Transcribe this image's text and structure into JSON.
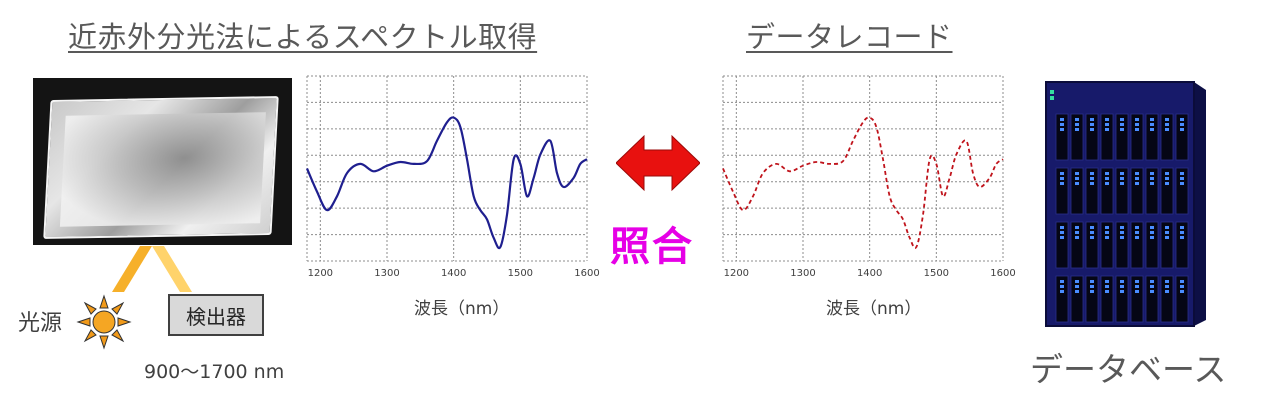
{
  "titles": {
    "acquisition": "近赤外分光法によるスペクトル取得",
    "record": "データレコード"
  },
  "labels": {
    "light_source": "光源",
    "detector": "検出器",
    "wavelength_range": "900～1700 nm",
    "matching": "照合",
    "database": "データベース"
  },
  "colors": {
    "measured_line": "#1f1f8f",
    "record_line": "#c0141c",
    "arrow": "#e8110f",
    "match_text": "#e600e6",
    "light_beam": "#f6b02a",
    "server_body": "#171a6a"
  },
  "chart_data": [
    {
      "type": "line",
      "title": "",
      "xlabel": "波長（nm）",
      "ylabel": "",
      "x_ticks": [
        "1200",
        "1300",
        "1400",
        "1500",
        "1600"
      ],
      "xlim": [
        1180,
        1600
      ],
      "ylim": [
        -1,
        1
      ],
      "grid": true,
      "line_style": "solid",
      "series": [
        {
          "x": [
            1180,
            1195,
            1210,
            1225,
            1240,
            1260,
            1280,
            1300,
            1320,
            1340,
            1360,
            1375,
            1390,
            1400,
            1410,
            1420,
            1430,
            1440,
            1450,
            1460,
            1470,
            1480,
            1490,
            1500,
            1510,
            1520,
            1530,
            1545,
            1555,
            1565,
            1580,
            1590,
            1600
          ],
          "y": [
            0.0,
            -0.25,
            -0.45,
            -0.3,
            -0.05,
            0.05,
            -0.03,
            0.03,
            0.07,
            0.05,
            0.08,
            0.3,
            0.5,
            0.55,
            0.45,
            0.1,
            -0.3,
            -0.45,
            -0.55,
            -0.75,
            -0.85,
            -0.5,
            0.1,
            0.05,
            -0.3,
            -0.1,
            0.15,
            0.3,
            -0.05,
            -0.2,
            -0.1,
            0.05,
            0.1
          ]
        }
      ]
    },
    {
      "type": "line",
      "title": "",
      "xlabel": "波長（nm）",
      "ylabel": "",
      "x_ticks": [
        "1200",
        "1300",
        "1400",
        "1500",
        "1600"
      ],
      "xlim": [
        1180,
        1600
      ],
      "ylim": [
        -1,
        1
      ],
      "grid": true,
      "line_style": "dashed",
      "series": [
        {
          "x": [
            1180,
            1195,
            1210,
            1225,
            1240,
            1260,
            1280,
            1300,
            1320,
            1340,
            1360,
            1375,
            1390,
            1400,
            1410,
            1420,
            1430,
            1440,
            1450,
            1460,
            1470,
            1480,
            1490,
            1500,
            1510,
            1520,
            1530,
            1545,
            1555,
            1565,
            1580,
            1590,
            1600
          ],
          "y": [
            0.0,
            -0.25,
            -0.45,
            -0.3,
            -0.05,
            0.05,
            -0.03,
            0.03,
            0.07,
            0.05,
            0.08,
            0.3,
            0.5,
            0.55,
            0.45,
            0.1,
            -0.3,
            -0.45,
            -0.55,
            -0.75,
            -0.85,
            -0.5,
            0.1,
            0.05,
            -0.3,
            -0.1,
            0.15,
            0.3,
            -0.05,
            -0.2,
            -0.1,
            0.05,
            0.1
          ]
        }
      ]
    }
  ]
}
